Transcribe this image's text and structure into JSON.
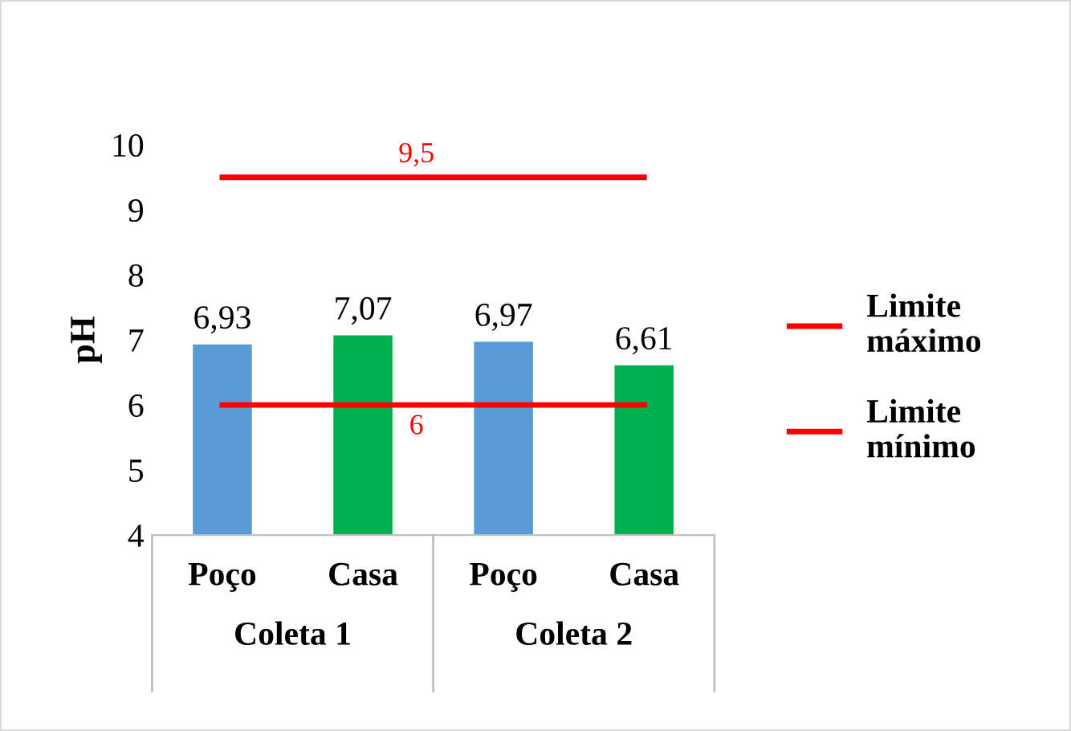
{
  "chart_data": {
    "type": "bar",
    "ylabel": "pH",
    "categories": [
      "Poço",
      "Casa",
      "Poço",
      "Casa"
    ],
    "series": [
      {
        "values": [
          6.93,
          7.07,
          6.97,
          6.61
        ],
        "colors": [
          "#5b9bd5",
          "#00b050",
          "#5b9bd5",
          "#00b050"
        ],
        "value_labels": [
          "6,93",
          "7,07",
          "6,97",
          "6,61"
        ]
      },
      {
        "type": "line",
        "name": "Limite máximo",
        "color": "#ff0000",
        "values": [
          9.5,
          9.5,
          9.5,
          9.5
        ],
        "value_labels": [
          null,
          "9,5",
          null,
          null
        ]
      },
      {
        "type": "line",
        "name": "Limite mínimo",
        "color": "#ff0000",
        "values": [
          6,
          6,
          6,
          6
        ],
        "value_labels": [
          null,
          "6",
          null,
          null
        ]
      }
    ],
    "annotations": [
      "Coleta 1",
      "Coleta 2"
    ],
    "ylim": [
      4,
      10
    ],
    "yticks": [
      4,
      5,
      6,
      7,
      8,
      9,
      10
    ],
    "grid": false,
    "legend": "right"
  }
}
